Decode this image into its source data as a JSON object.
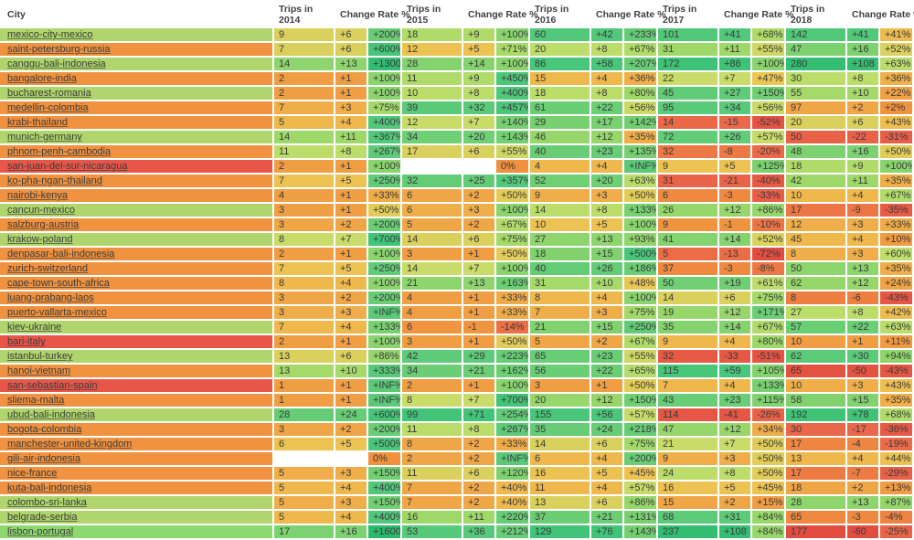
{
  "header": {
    "city_label": "City",
    "trips_labels": [
      "Trips in 2014",
      "Trips in 2015",
      "Trips in 2016",
      "Trips in 2017",
      "Trips in 2018"
    ],
    "rate_label": "Change Rate %"
  },
  "palette": {
    "white": "#ffffff",
    "text": "#3a3a3a",
    "header_text": "#3f3f46",
    "city_orange": "#f0923f",
    "city_green": "#afd56c",
    "city_green_bright": "#8ed96e",
    "city_red": "#e8564a",
    "gradient_stops": [
      [
        0.0,
        "#e2493f"
      ],
      [
        0.13,
        "#e9664a"
      ],
      [
        0.27,
        "#f0913e"
      ],
      [
        0.38,
        "#efae49"
      ],
      [
        0.45,
        "#ecc653"
      ],
      [
        0.52,
        "#c3de6b"
      ],
      [
        0.62,
        "#9ed868"
      ],
      [
        0.72,
        "#74d072"
      ],
      [
        0.82,
        "#54c97b"
      ],
      [
        0.92,
        "#3ac276"
      ],
      [
        1.0,
        "#2bb96d"
      ]
    ]
  },
  "rows": [
    {
      "city": "mexico-city-mexico",
      "city_color": "#afd56c",
      "years": [
        [
          "9",
          "+6",
          "+200%"
        ],
        [
          "18",
          "+9",
          "+100%"
        ],
        [
          "60",
          "+42",
          "+233%"
        ],
        [
          "101",
          "+41",
          "+68%"
        ],
        [
          "142",
          "+41",
          "+41%"
        ]
      ]
    },
    {
      "city": "saint-petersburg-russia",
      "city_color": "#f0923f",
      "years": [
        [
          "7",
          "+6",
          "+600%"
        ],
        [
          "12",
          "+5",
          "+71%"
        ],
        [
          "20",
          "+8",
          "+67%"
        ],
        [
          "31",
          "+11",
          "+55%"
        ],
        [
          "47",
          "+16",
          "+52%"
        ]
      ]
    },
    {
      "city": "canggu-bali-indonesia",
      "city_color": "#afd56c",
      "years": [
        [
          "14",
          "+13",
          "+1300%"
        ],
        [
          "28",
          "+14",
          "+100%"
        ],
        [
          "86",
          "+58",
          "+207%"
        ],
        [
          "172",
          "+86",
          "+100%"
        ],
        [
          "280",
          "+108",
          "+63%"
        ]
      ]
    },
    {
      "city": "bangalore-india",
      "city_color": "#f0923f",
      "years": [
        [
          "2",
          "+1",
          "+100%"
        ],
        [
          "11",
          "+9",
          "+450%"
        ],
        [
          "15",
          "+4",
          "+36%"
        ],
        [
          "22",
          "+7",
          "+47%"
        ],
        [
          "30",
          "+8",
          "+36%"
        ]
      ]
    },
    {
      "city": "bucharest-romania",
      "city_color": "#afd56c",
      "years": [
        [
          "2",
          "+1",
          "+100%"
        ],
        [
          "10",
          "+8",
          "+400%"
        ],
        [
          "18",
          "+8",
          "+80%"
        ],
        [
          "45",
          "+27",
          "+150%"
        ],
        [
          "55",
          "+10",
          "+22%"
        ]
      ]
    },
    {
      "city": "medellin-colombia",
      "city_color": "#f0923f",
      "years": [
        [
          "7",
          "+3",
          "+75%"
        ],
        [
          "39",
          "+32",
          "+457%"
        ],
        [
          "61",
          "+22",
          "+56%"
        ],
        [
          "95",
          "+34",
          "+56%"
        ],
        [
          "97",
          "+2",
          "+2%"
        ]
      ]
    },
    {
      "city": "krabi-thailand",
      "city_color": "#f0923f",
      "years": [
        [
          "5",
          "+4",
          "+400%"
        ],
        [
          "12",
          "+7",
          "+140%"
        ],
        [
          "29",
          "+17",
          "+142%"
        ],
        [
          "14",
          "-15",
          "-52%"
        ],
        [
          "20",
          "+6",
          "+43%"
        ]
      ]
    },
    {
      "city": "munich-germany",
      "city_color": "#afd56c",
      "years": [
        [
          "14",
          "+11",
          "+367%"
        ],
        [
          "34",
          "+20",
          "+143%"
        ],
        [
          "46",
          "+12",
          "+35%"
        ],
        [
          "72",
          "+26",
          "+57%"
        ],
        [
          "50",
          "-22",
          "-31%"
        ]
      ]
    },
    {
      "city": "phnom-penh-cambodia",
      "city_color": "#f0923f",
      "years": [
        [
          "11",
          "+8",
          "+267%"
        ],
        [
          "17",
          "+6",
          "+55%"
        ],
        [
          "40",
          "+23",
          "+135%"
        ],
        [
          "32",
          "-8",
          "-20%"
        ],
        [
          "48",
          "+16",
          "+50%"
        ]
      ]
    },
    {
      "city": "san-juan-del-sur-nicaragua",
      "city_color": "#e8564a",
      "years": [
        [
          "2",
          "+1",
          "+100%"
        ],
        [
          "",
          "",
          "0%"
        ],
        [
          "4",
          "+4",
          "+INF%"
        ],
        [
          "9",
          "+5",
          "+125%"
        ],
        [
          "18",
          "+9",
          "+100%"
        ]
      ]
    },
    {
      "city": "ko-pha-ngan-thailand",
      "city_color": "#f0923f",
      "years": [
        [
          "7",
          "+5",
          "+250%"
        ],
        [
          "32",
          "+25",
          "+357%"
        ],
        [
          "52",
          "+20",
          "+63%"
        ],
        [
          "31",
          "-21",
          "-40%"
        ],
        [
          "42",
          "+11",
          "+35%"
        ]
      ]
    },
    {
      "city": "nairobi-kenya",
      "city_color": "#f0923f",
      "years": [
        [
          "4",
          "+1",
          "+33%"
        ],
        [
          "6",
          "+2",
          "+50%"
        ],
        [
          "9",
          "+3",
          "+50%"
        ],
        [
          "6",
          "-3",
          "-33%"
        ],
        [
          "10",
          "+4",
          "+67%"
        ]
      ]
    },
    {
      "city": "cancun-mexico",
      "city_color": "#afd56c",
      "years": [
        [
          "3",
          "+1",
          "+50%"
        ],
        [
          "6",
          "+3",
          "+100%"
        ],
        [
          "14",
          "+8",
          "+133%"
        ],
        [
          "26",
          "+12",
          "+86%"
        ],
        [
          "17",
          "-9",
          "-35%"
        ]
      ]
    },
    {
      "city": "salzburg-austria",
      "city_color": "#f0923f",
      "years": [
        [
          "3",
          "+2",
          "+200%"
        ],
        [
          "5",
          "+2",
          "+67%"
        ],
        [
          "10",
          "+5",
          "+100%"
        ],
        [
          "9",
          "-1",
          "-10%"
        ],
        [
          "12",
          "+3",
          "+33%"
        ]
      ]
    },
    {
      "city": "krakow-poland",
      "city_color": "#afd56c",
      "years": [
        [
          "8",
          "+7",
          "+700%"
        ],
        [
          "14",
          "+6",
          "+75%"
        ],
        [
          "27",
          "+13",
          "+93%"
        ],
        [
          "41",
          "+14",
          "+52%"
        ],
        [
          "45",
          "+4",
          "+10%"
        ]
      ]
    },
    {
      "city": "denpasar-bali-indonesia",
      "city_color": "#f0923f",
      "years": [
        [
          "2",
          "+1",
          "+100%"
        ],
        [
          "3",
          "+1",
          "+50%"
        ],
        [
          "18",
          "+15",
          "+500%"
        ],
        [
          "5",
          "-13",
          "-72%"
        ],
        [
          "8",
          "+3",
          "+60%"
        ]
      ]
    },
    {
      "city": "zurich-switzerland",
      "city_color": "#f0923f",
      "years": [
        [
          "7",
          "+5",
          "+250%"
        ],
        [
          "14",
          "+7",
          "+100%"
        ],
        [
          "40",
          "+26",
          "+186%"
        ],
        [
          "37",
          "-3",
          "-8%"
        ],
        [
          "50",
          "+13",
          "+35%"
        ]
      ]
    },
    {
      "city": "cape-town-south-africa",
      "city_color": "#f0923f",
      "years": [
        [
          "8",
          "+4",
          "+100%"
        ],
        [
          "21",
          "+13",
          "+163%"
        ],
        [
          "31",
          "+10",
          "+48%"
        ],
        [
          "50",
          "+19",
          "+61%"
        ],
        [
          "62",
          "+12",
          "+24%"
        ]
      ]
    },
    {
      "city": "luang-prabang-laos",
      "city_color": "#f0923f",
      "years": [
        [
          "3",
          "+2",
          "+200%"
        ],
        [
          "4",
          "+1",
          "+33%"
        ],
        [
          "8",
          "+4",
          "+100%"
        ],
        [
          "14",
          "+6",
          "+75%"
        ],
        [
          "8",
          "-6",
          "-43%"
        ]
      ]
    },
    {
      "city": "puerto-vallarta-mexico",
      "city_color": "#f0923f",
      "years": [
        [
          "3",
          "+3",
          "+INF%"
        ],
        [
          "4",
          "+1",
          "+33%"
        ],
        [
          "7",
          "+3",
          "+75%"
        ],
        [
          "19",
          "+12",
          "+171%"
        ],
        [
          "27",
          "+8",
          "+42%"
        ]
      ]
    },
    {
      "city": "kiev-ukraine",
      "city_color": "#afd56c",
      "years": [
        [
          "7",
          "+4",
          "+133%"
        ],
        [
          "6",
          "-1",
          "-14%"
        ],
        [
          "21",
          "+15",
          "+250%"
        ],
        [
          "35",
          "+14",
          "+67%"
        ],
        [
          "57",
          "+22",
          "+63%"
        ]
      ]
    },
    {
      "city": "bari-italy",
      "city_color": "#e8564a",
      "years": [
        [
          "2",
          "+1",
          "+100%"
        ],
        [
          "3",
          "+1",
          "+50%"
        ],
        [
          "5",
          "+2",
          "+67%"
        ],
        [
          "9",
          "+4",
          "+80%"
        ],
        [
          "10",
          "+1",
          "+11%"
        ]
      ]
    },
    {
      "city": "istanbul-turkey",
      "city_color": "#afd56c",
      "years": [
        [
          "13",
          "+6",
          "+86%"
        ],
        [
          "42",
          "+29",
          "+223%"
        ],
        [
          "65",
          "+23",
          "+55%"
        ],
        [
          "32",
          "-33",
          "-51%"
        ],
        [
          "62",
          "+30",
          "+94%"
        ]
      ]
    },
    {
      "city": "hanoi-vietnam",
      "city_color": "#f0923f",
      "years": [
        [
          "13",
          "+10",
          "+333%"
        ],
        [
          "34",
          "+21",
          "+162%"
        ],
        [
          "56",
          "+22",
          "+65%"
        ],
        [
          "115",
          "+59",
          "+105%"
        ],
        [
          "65",
          "-50",
          "-43%"
        ]
      ]
    },
    {
      "city": "san-sebastian-spain",
      "city_color": "#e8564a",
      "years": [
        [
          "1",
          "+1",
          "+INF%"
        ],
        [
          "2",
          "+1",
          "+100%"
        ],
        [
          "3",
          "+1",
          "+50%"
        ],
        [
          "7",
          "+4",
          "+133%"
        ],
        [
          "10",
          "+3",
          "+43%"
        ]
      ]
    },
    {
      "city": "sliema-malta",
      "city_color": "#f0923f",
      "years": [
        [
          "1",
          "+1",
          "+INF%"
        ],
        [
          "8",
          "+7",
          "+700%"
        ],
        [
          "20",
          "+12",
          "+150%"
        ],
        [
          "43",
          "+23",
          "+115%"
        ],
        [
          "58",
          "+15",
          "+35%"
        ]
      ]
    },
    {
      "city": "ubud-bali-indonesia",
      "city_color": "#afd56c",
      "years": [
        [
          "28",
          "+24",
          "+600%"
        ],
        [
          "99",
          "+71",
          "+254%"
        ],
        [
          "155",
          "+56",
          "+57%"
        ],
        [
          "114",
          "-41",
          "-26%"
        ],
        [
          "192",
          "+78",
          "+68%"
        ]
      ]
    },
    {
      "city": "bogota-colombia",
      "city_color": "#f0923f",
      "years": [
        [
          "3",
          "+2",
          "+200%"
        ],
        [
          "11",
          "+8",
          "+267%"
        ],
        [
          "35",
          "+24",
          "+218%"
        ],
        [
          "47",
          "+12",
          "+34%"
        ],
        [
          "30",
          "-17",
          "-36%"
        ]
      ]
    },
    {
      "city": "manchester-united-kingdom",
      "city_color": "#f0923f",
      "years": [
        [
          "6",
          "+5",
          "+500%"
        ],
        [
          "8",
          "+2",
          "+33%"
        ],
        [
          "14",
          "+6",
          "+75%"
        ],
        [
          "21",
          "+7",
          "+50%"
        ],
        [
          "17",
          "-4",
          "-19%"
        ]
      ]
    },
    {
      "city": "gili-air-indonesia",
      "city_color": "#f0923f",
      "years": [
        [
          "",
          "",
          "0%"
        ],
        [
          "2",
          "+2",
          "+INF%"
        ],
        [
          "6",
          "+4",
          "+200%"
        ],
        [
          "9",
          "+3",
          "+50%"
        ],
        [
          "13",
          "+4",
          "+44%"
        ]
      ]
    },
    {
      "city": "nice-france",
      "city_color": "#f0923f",
      "years": [
        [
          "5",
          "+3",
          "+150%"
        ],
        [
          "11",
          "+6",
          "+120%"
        ],
        [
          "16",
          "+5",
          "+45%"
        ],
        [
          "24",
          "+8",
          "+50%"
        ],
        [
          "17",
          "-7",
          "-29%"
        ]
      ]
    },
    {
      "city": "kuta-bali-indonesia",
      "city_color": "#f0923f",
      "years": [
        [
          "5",
          "+4",
          "+400%"
        ],
        [
          "7",
          "+2",
          "+40%"
        ],
        [
          "11",
          "+4",
          "+57%"
        ],
        [
          "16",
          "+5",
          "+45%"
        ],
        [
          "18",
          "+2",
          "+13%"
        ]
      ]
    },
    {
      "city": "colombo-sri-lanka",
      "city_color": "#afd56c",
      "years": [
        [
          "5",
          "+3",
          "+150%"
        ],
        [
          "7",
          "+2",
          "+40%"
        ],
        [
          "13",
          "+6",
          "+86%"
        ],
        [
          "15",
          "+2",
          "+15%"
        ],
        [
          "28",
          "+13",
          "+87%"
        ]
      ]
    },
    {
      "city": "belgrade-serbia",
      "city_color": "#afd56c",
      "years": [
        [
          "5",
          "+4",
          "+400%"
        ],
        [
          "16",
          "+11",
          "+220%"
        ],
        [
          "37",
          "+21",
          "+131%"
        ],
        [
          "68",
          "+31",
          "+84%"
        ],
        [
          "65",
          "-3",
          "-4%"
        ]
      ]
    },
    {
      "city": "lisbon-portugal",
      "city_color": "#8ed96e",
      "years": [
        [
          "17",
          "+16",
          "+1600%"
        ],
        [
          "53",
          "+36",
          "+212%"
        ],
        [
          "129",
          "+76",
          "+143%"
        ],
        [
          "237",
          "+108",
          "+84%"
        ],
        [
          "177",
          "-60",
          "-25%"
        ]
      ]
    }
  ]
}
